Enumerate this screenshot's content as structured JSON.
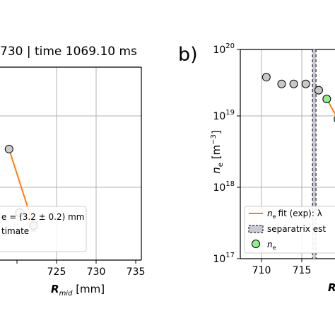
{
  "left_panel": {
    "title": "730 | time 1069.10 ms",
    "xlabel": "R",
    "xlabel_sub": "mid",
    "xlabel_unit": " [mm]"
  },
  "right_panel": {
    "panel_label": "b)",
    "ylabel": "n",
    "ylabel_sub": "e",
    "ylabel_unit": " [m",
    "ylabel_exp": "−3",
    "ylabel_close": "]",
    "xlabel": "R",
    "legend_fit": "fit (exp): λ",
    "legend_fit_var": "n",
    "legend_fit_var_sub": "e",
    "legend_sep": "separatrix est",
    "legend_marker": "n",
    "legend_marker_sub": "e"
  },
  "chart_data": [
    {
      "type": "scatter",
      "title": "730 | time 1069.10 ms",
      "xlabel": "R_mid [mm]",
      "xlim": [
        710,
        735
      ],
      "x_ticks": [
        "725",
        "730",
        "735"
      ],
      "grid": true,
      "series": [
        {
          "name": "",
          "x": [
            719.0,
            720.3,
            722.1
          ],
          "values": [
            0.55,
            0.31,
            0.26
          ],
          "color": "#f0a14a"
        }
      ],
      "fit": {
        "x": [
          719.0,
          722.1
        ],
        "color": "#ff7f0e"
      },
      "legend": {
        "placement": "lower-right",
        "entries": [
          "e = (3.2 ± 0.2) mm",
          "timate"
        ]
      }
    },
    {
      "type": "scatter",
      "panel": "b)",
      "ylabel": "n_e [m^-3]",
      "xlabel": "R",
      "yscale": "log",
      "ylim": [
        1e+17,
        1e+20
      ],
      "y_ticks": [
        "10^17",
        "10^18",
        "10^19",
        "10^20"
      ],
      "x_ticks": [
        "710",
        "715"
      ],
      "grid": true,
      "series": [
        {
          "name": "n_e",
          "x": [
            710.6,
            712.5,
            714.0,
            715.5,
            717.1,
            718.1
          ],
          "values": [
            4e+19,
            3.2e+19,
            3.2e+19,
            3.2e+19,
            2.6e+19,
            1.9e+19
          ],
          "color": "#c8c8c8"
        },
        {
          "name": "n_e",
          "x": [
            718.1,
            719.5
          ],
          "values": [
            1.95e+19,
            1e+19
          ],
          "color": "#90ee90"
        }
      ],
      "separatrix_x": 716.5,
      "legend": {
        "placement": "lower-right",
        "entries": [
          "n_e fit (exp): λ",
          "separatrix est",
          "n_e"
        ]
      }
    }
  ]
}
